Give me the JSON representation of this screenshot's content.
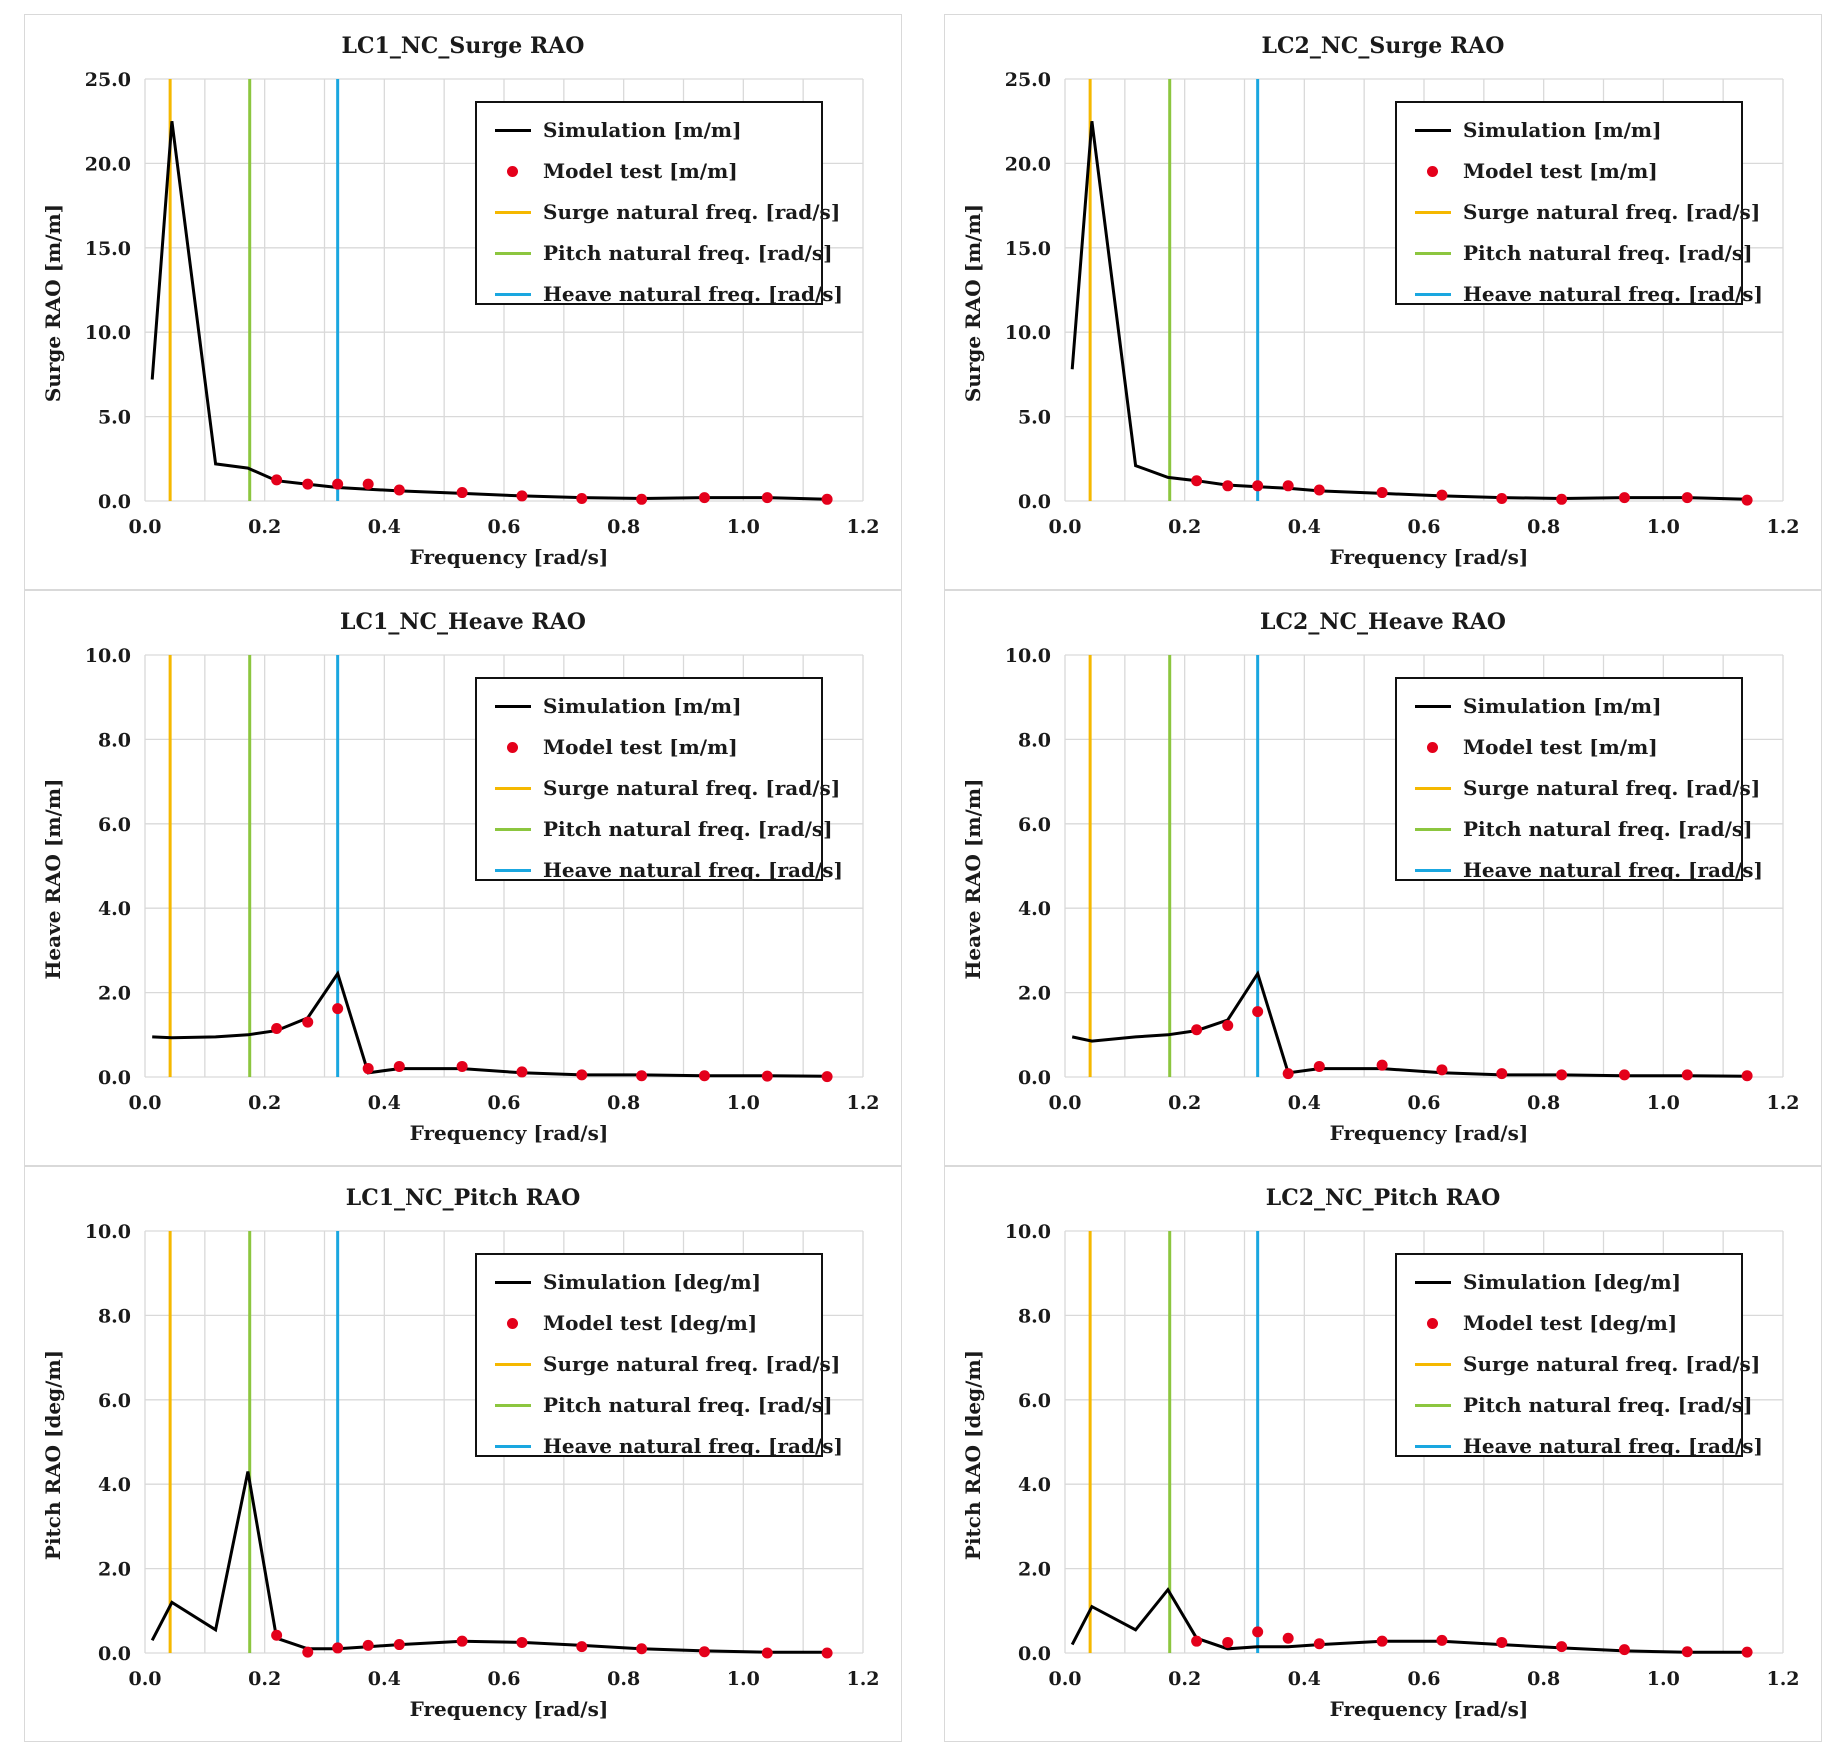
{
  "colors": {
    "simulation": "#000000",
    "model_test": "#e4001b",
    "surge_natural": "#f5b800",
    "pitch_natural": "#8cc63f",
    "heave_natural": "#1aa7e0",
    "grid": "#d9d9d9"
  },
  "chart_data": [
    {
      "type": "line",
      "title": "LC1_NC_Surge RAO",
      "xlabel": "Frequency [rad/s]",
      "ylabel": "Surge RAO [m/m]",
      "xlim": [
        0.0,
        1.2
      ],
      "ylim": [
        0.0,
        25.0
      ],
      "xticks": [
        "0.0",
        "0.2",
        "0.4",
        "0.6",
        "0.8",
        "1.0",
        "1.2"
      ],
      "yticks": [
        "0.0",
        "5.0",
        "10.0",
        "15.0",
        "20.0",
        "25.0"
      ],
      "natural_freqs": {
        "surge": 0.042,
        "pitch": 0.175,
        "heave": 0.322
      },
      "legend": [
        "Simulation [m/m]",
        "Model test [m/m]",
        "Surge natural freq. [rad/s]",
        "Pitch natural freq. [rad/s]",
        "Heave natural freq. [rad/s]"
      ],
      "simulation": {
        "x": [
          0.012,
          0.045,
          0.118,
          0.172,
          0.22,
          0.27,
          0.322,
          0.373,
          0.425,
          0.53,
          0.63,
          0.73,
          0.83,
          0.935,
          1.04,
          1.14
        ],
        "y": [
          7.2,
          22.5,
          2.2,
          1.95,
          1.2,
          1.0,
          0.8,
          0.7,
          0.6,
          0.45,
          0.3,
          0.2,
          0.15,
          0.2,
          0.2,
          0.1
        ]
      },
      "model_test": {
        "x": [
          0.22,
          0.272,
          0.322,
          0.373,
          0.425,
          0.53,
          0.63,
          0.73,
          0.83,
          0.935,
          1.04,
          1.14
        ],
        "y": [
          1.25,
          1.0,
          1.0,
          1.0,
          0.65,
          0.5,
          0.3,
          0.15,
          0.1,
          0.2,
          0.2,
          0.1
        ]
      }
    },
    {
      "type": "line",
      "title": "LC2_NC_Surge RAO",
      "xlabel": "Frequency [rad/s]",
      "ylabel": "Surge RAO [m/m]",
      "xlim": [
        0.0,
        1.2
      ],
      "ylim": [
        0.0,
        25.0
      ],
      "xticks": [
        "0.0",
        "0.2",
        "0.4",
        "0.6",
        "0.8",
        "1.0",
        "1.2"
      ],
      "yticks": [
        "0.0",
        "5.0",
        "10.0",
        "15.0",
        "20.0",
        "25.0"
      ],
      "natural_freqs": {
        "surge": 0.042,
        "pitch": 0.175,
        "heave": 0.322
      },
      "legend": [
        "Simulation [m/m]",
        "Model test [m/m]",
        "Surge natural freq. [rad/s]",
        "Pitch natural freq. [rad/s]",
        "Heave natural freq. [rad/s]"
      ],
      "simulation": {
        "x": [
          0.012,
          0.045,
          0.118,
          0.172,
          0.22,
          0.27,
          0.322,
          0.373,
          0.425,
          0.53,
          0.63,
          0.73,
          0.83,
          0.935,
          1.04,
          1.14
        ],
        "y": [
          7.8,
          22.5,
          2.1,
          1.4,
          1.2,
          0.95,
          0.85,
          0.75,
          0.6,
          0.45,
          0.3,
          0.2,
          0.15,
          0.2,
          0.2,
          0.1
        ]
      },
      "model_test": {
        "x": [
          0.22,
          0.272,
          0.322,
          0.373,
          0.425,
          0.53,
          0.63,
          0.73,
          0.83,
          0.935,
          1.04,
          1.14
        ],
        "y": [
          1.2,
          0.9,
          0.9,
          0.9,
          0.65,
          0.5,
          0.35,
          0.15,
          0.1,
          0.2,
          0.2,
          0.05
        ]
      }
    },
    {
      "type": "line",
      "title": "LC1_NC_Heave RAO",
      "xlabel": "Frequency [rad/s]",
      "ylabel": "Heave RAO [m/m]",
      "xlim": [
        0.0,
        1.2
      ],
      "ylim": [
        0.0,
        10.0
      ],
      "xticks": [
        "0.0",
        "0.2",
        "0.4",
        "0.6",
        "0.8",
        "1.0",
        "1.2"
      ],
      "yticks": [
        "0.0",
        "2.0",
        "4.0",
        "6.0",
        "8.0",
        "10.0"
      ],
      "natural_freqs": {
        "surge": 0.042,
        "pitch": 0.175,
        "heave": 0.322
      },
      "legend": [
        "Simulation [m/m]",
        "Model test [m/m]",
        "Surge natural freq. [rad/s]",
        "Pitch natural freq. [rad/s]",
        "Heave natural freq. [rad/s]"
      ],
      "simulation": {
        "x": [
          0.012,
          0.045,
          0.118,
          0.172,
          0.22,
          0.272,
          0.322,
          0.373,
          0.425,
          0.53,
          0.63,
          0.73,
          0.83,
          0.935,
          1.04,
          1.14
        ],
        "y": [
          0.95,
          0.93,
          0.95,
          1.0,
          1.1,
          1.4,
          2.45,
          0.1,
          0.2,
          0.2,
          0.1,
          0.05,
          0.05,
          0.03,
          0.03,
          0.02
        ]
      },
      "model_test": {
        "x": [
          0.22,
          0.272,
          0.322,
          0.373,
          0.425,
          0.53,
          0.63,
          0.73,
          0.83,
          0.935,
          1.04,
          1.14
        ],
        "y": [
          1.15,
          1.3,
          1.62,
          0.2,
          0.25,
          0.25,
          0.12,
          0.05,
          0.03,
          0.03,
          0.02,
          0.01
        ]
      }
    },
    {
      "type": "line",
      "title": "LC2_NC_Heave RAO",
      "xlabel": "Frequency [rad/s]",
      "ylabel": "Heave RAO [m/m]",
      "xlim": [
        0.0,
        1.2
      ],
      "ylim": [
        0.0,
        10.0
      ],
      "xticks": [
        "0.0",
        "0.2",
        "0.4",
        "0.6",
        "0.8",
        "1.0",
        "1.2"
      ],
      "yticks": [
        "0.0",
        "2.0",
        "4.0",
        "6.0",
        "8.0",
        "10.0"
      ],
      "natural_freqs": {
        "surge": 0.042,
        "pitch": 0.175,
        "heave": 0.322
      },
      "legend": [
        "Simulation [m/m]",
        "Model test [m/m]",
        "Surge natural freq. [rad/s]",
        "Pitch natural freq. [rad/s]",
        "Heave natural freq. [rad/s]"
      ],
      "simulation": {
        "x": [
          0.012,
          0.045,
          0.118,
          0.172,
          0.22,
          0.272,
          0.322,
          0.373,
          0.425,
          0.53,
          0.63,
          0.73,
          0.83,
          0.935,
          1.04,
          1.14
        ],
        "y": [
          0.95,
          0.85,
          0.95,
          1.0,
          1.1,
          1.35,
          2.45,
          0.1,
          0.2,
          0.2,
          0.1,
          0.05,
          0.05,
          0.03,
          0.03,
          0.02
        ]
      },
      "model_test": {
        "x": [
          0.22,
          0.272,
          0.322,
          0.373,
          0.425,
          0.53,
          0.63,
          0.73,
          0.83,
          0.935,
          1.04,
          1.14
        ],
        "y": [
          1.12,
          1.22,
          1.55,
          0.08,
          0.25,
          0.28,
          0.17,
          0.08,
          0.05,
          0.05,
          0.05,
          0.03
        ]
      }
    },
    {
      "type": "line",
      "title": "LC1_NC_Pitch RAO",
      "xlabel": "Frequency [rad/s]",
      "ylabel": "Pitch RAO [deg/m]",
      "xlim": [
        0.0,
        1.2
      ],
      "ylim": [
        0.0,
        10.0
      ],
      "xticks": [
        "0.0",
        "0.2",
        "0.4",
        "0.6",
        "0.8",
        "1.0",
        "1.2"
      ],
      "yticks": [
        "0.0",
        "2.0",
        "4.0",
        "6.0",
        "8.0",
        "10.0"
      ],
      "natural_freqs": {
        "surge": 0.042,
        "pitch": 0.175,
        "heave": 0.322
      },
      "legend": [
        "Simulation [deg/m]",
        "Model test [deg/m]",
        "Surge natural freq. [rad/s]",
        "Pitch natural freq. [rad/s]",
        "Heave natural freq. [rad/s]"
      ],
      "simulation": {
        "x": [
          0.012,
          0.045,
          0.118,
          0.172,
          0.22,
          0.272,
          0.322,
          0.373,
          0.425,
          0.53,
          0.63,
          0.73,
          0.83,
          0.935,
          1.04,
          1.14
        ],
        "y": [
          0.3,
          1.2,
          0.55,
          4.3,
          0.35,
          0.1,
          0.1,
          0.15,
          0.2,
          0.28,
          0.25,
          0.18,
          0.1,
          0.05,
          0.02,
          0.02
        ]
      },
      "model_test": {
        "x": [
          0.22,
          0.272,
          0.322,
          0.373,
          0.425,
          0.53,
          0.63,
          0.73,
          0.83,
          0.935,
          1.04,
          1.14
        ],
        "y": [
          0.42,
          0.02,
          0.12,
          0.18,
          0.2,
          0.28,
          0.25,
          0.15,
          0.1,
          0.03,
          0.0,
          0.0
        ]
      }
    },
    {
      "type": "line",
      "title": "LC2_NC_Pitch RAO",
      "xlabel": "Frequency [rad/s]",
      "ylabel": "Pitch RAO [deg/m]",
      "xlim": [
        0.0,
        1.2
      ],
      "ylim": [
        0.0,
        10.0
      ],
      "xticks": [
        "0.0",
        "0.2",
        "0.4",
        "0.6",
        "0.8",
        "1.0",
        "1.2"
      ],
      "yticks": [
        "0.0",
        "2.0",
        "4.0",
        "6.0",
        "8.0",
        "10.0"
      ],
      "natural_freqs": {
        "surge": 0.042,
        "pitch": 0.175,
        "heave": 0.322
      },
      "legend": [
        "Simulation [deg/m]",
        "Model test [deg/m]",
        "Surge natural freq. [rad/s]",
        "Pitch natural freq. [rad/s]",
        "Heave natural freq. [rad/s]"
      ],
      "simulation": {
        "x": [
          0.012,
          0.045,
          0.118,
          0.172,
          0.22,
          0.272,
          0.322,
          0.373,
          0.425,
          0.53,
          0.63,
          0.73,
          0.83,
          0.935,
          1.04,
          1.14
        ],
        "y": [
          0.2,
          1.1,
          0.55,
          1.5,
          0.35,
          0.1,
          0.15,
          0.15,
          0.2,
          0.28,
          0.28,
          0.2,
          0.12,
          0.05,
          0.02,
          0.02
        ]
      },
      "model_test": {
        "x": [
          0.22,
          0.272,
          0.322,
          0.373,
          0.425,
          0.53,
          0.63,
          0.73,
          0.83,
          0.935,
          1.04,
          1.14
        ],
        "y": [
          0.28,
          0.25,
          0.5,
          0.35,
          0.22,
          0.28,
          0.3,
          0.25,
          0.15,
          0.08,
          0.03,
          0.02
        ]
      }
    }
  ]
}
